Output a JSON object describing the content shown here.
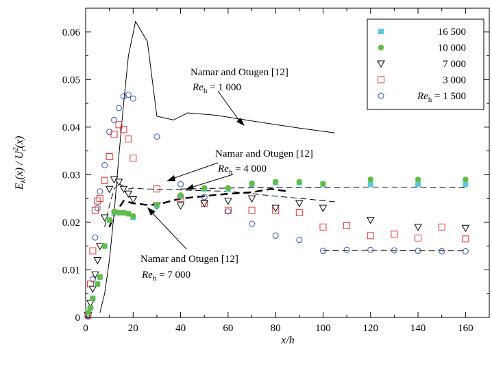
{
  "chart_data": {
    "type": "scatter",
    "title": "",
    "xlabel": "x/h",
    "ylabel": "E_k(x) / U_c^2(x)",
    "xlim": [
      0,
      170
    ],
    "ylim": [
      0,
      0.065
    ],
    "xticks": [
      0,
      20,
      40,
      60,
      80,
      100,
      120,
      140,
      160
    ],
    "yticks": [
      0,
      0.01,
      0.02,
      0.03,
      0.04,
      0.05,
      0.06
    ],
    "ytick_labels": [
      "0",
      "0.01",
      "0.02",
      "0.03",
      "0.04",
      "0.05",
      "0.06"
    ],
    "grid": false,
    "legend_position": "top-right",
    "series": [
      {
        "name": "16 500",
        "marker": "filled-square",
        "color": "#5bc8d8",
        "points": [
          [
            1,
            0.001
          ],
          [
            2,
            0.002
          ],
          [
            3,
            0.004
          ],
          [
            5,
            0.007
          ],
          [
            6,
            0.0085
          ],
          [
            8,
            0.015
          ],
          [
            10,
            0.0205
          ],
          [
            12,
            0.022
          ],
          [
            14,
            0.022
          ],
          [
            16,
            0.022
          ],
          [
            18,
            0.0218
          ],
          [
            20,
            0.021
          ],
          [
            30,
            0.0235
          ],
          [
            40,
            0.0255
          ],
          [
            50,
            0.027
          ],
          [
            60,
            0.027
          ],
          [
            70,
            0.028
          ],
          [
            80,
            0.0283
          ],
          [
            90,
            0.0283
          ],
          [
            100,
            0.028
          ],
          [
            120,
            0.028
          ],
          [
            140,
            0.028
          ],
          [
            160,
            0.028
          ]
        ]
      },
      {
        "name": "10 000",
        "marker": "filled-circle",
        "color": "#66bb44",
        "points": [
          [
            1,
            0.001
          ],
          [
            2,
            0.002
          ],
          [
            3,
            0.004
          ],
          [
            5,
            0.007
          ],
          [
            6,
            0.0085
          ],
          [
            8,
            0.015
          ],
          [
            10,
            0.0205
          ],
          [
            12,
            0.0222
          ],
          [
            14,
            0.022
          ],
          [
            16,
            0.022
          ],
          [
            18,
            0.0218
          ],
          [
            20,
            0.0213
          ],
          [
            30,
            0.0237
          ],
          [
            40,
            0.0257
          ],
          [
            50,
            0.0272
          ],
          [
            60,
            0.0272
          ],
          [
            70,
            0.0282
          ],
          [
            80,
            0.0285
          ],
          [
            90,
            0.0285
          ],
          [
            100,
            0.0281
          ],
          [
            120,
            0.029
          ],
          [
            140,
            0.029
          ],
          [
            160,
            0.029
          ]
        ]
      },
      {
        "name": "7 000",
        "marker": "open-triangle-down",
        "color": "#000000",
        "points": [
          [
            1,
            0.0005
          ],
          [
            2,
            0.003
          ],
          [
            3,
            0.006
          ],
          [
            4,
            0.009
          ],
          [
            5,
            0.012
          ],
          [
            6,
            0.015
          ],
          [
            8,
            0.021
          ],
          [
            10,
            0.027
          ],
          [
            12,
            0.029
          ],
          [
            14,
            0.0285
          ],
          [
            16,
            0.027
          ],
          [
            18,
            0.026
          ],
          [
            20,
            0.0248
          ],
          [
            30,
            0.0235
          ],
          [
            40,
            0.0235
          ],
          [
            50,
            0.024
          ],
          [
            60,
            0.0245
          ],
          [
            70,
            0.025
          ],
          [
            80,
            0.023
          ],
          [
            90,
            0.024
          ],
          [
            100,
            0.023
          ],
          [
            120,
            0.0205
          ],
          [
            140,
            0.019
          ],
          [
            160,
            0.0188
          ]
        ]
      },
      {
        "name": "3 000",
        "marker": "open-square",
        "color": "#e03030",
        "points": [
          [
            1,
            0.0005
          ],
          [
            2,
            0.007
          ],
          [
            3,
            0.014
          ],
          [
            4,
            0.0225
          ],
          [
            5,
            0.0245
          ],
          [
            6,
            0.025
          ],
          [
            8,
            0.0288
          ],
          [
            10,
            0.0338
          ],
          [
            12,
            0.0385
          ],
          [
            14,
            0.0405
          ],
          [
            16,
            0.0395
          ],
          [
            18,
            0.0375
          ],
          [
            20,
            0.0335
          ],
          [
            30,
            0.027
          ],
          [
            40,
            0.025
          ],
          [
            50,
            0.024
          ],
          [
            60,
            0.0225
          ],
          [
            70,
            0.0225
          ],
          [
            80,
            0.0225
          ],
          [
            90,
            0.022
          ],
          [
            100,
            0.019
          ],
          [
            110,
            0.0193
          ],
          [
            120,
            0.0172
          ],
          [
            130,
            0.0175
          ],
          [
            140,
            0.0167
          ],
          [
            150,
            0.019
          ],
          [
            160,
            0.0165
          ]
        ]
      },
      {
        "name": "Re_h = 1 500",
        "marker": "open-circle",
        "color": "#3050b0",
        "points": [
          [
            1,
            0.0002
          ],
          [
            2,
            0.002
          ],
          [
            3,
            0.008
          ],
          [
            4,
            0.0168
          ],
          [
            5,
            0.023
          ],
          [
            6,
            0.0265
          ],
          [
            8,
            0.032
          ],
          [
            10,
            0.039
          ],
          [
            12,
            0.0415
          ],
          [
            14,
            0.044
          ],
          [
            16,
            0.0465
          ],
          [
            18,
            0.0468
          ],
          [
            20,
            0.046
          ],
          [
            30,
            0.038
          ],
          [
            40,
            0.028
          ],
          [
            50,
            0.0253
          ],
          [
            60,
            0.0223
          ],
          [
            70,
            0.0197
          ],
          [
            80,
            0.0172
          ],
          [
            90,
            0.0163
          ],
          [
            100,
            0.014
          ],
          [
            110,
            0.0142
          ],
          [
            120,
            0.0142
          ],
          [
            130,
            0.0141
          ],
          [
            140,
            0.014
          ],
          [
            150,
            0.0139
          ],
          [
            160,
            0.0139
          ]
        ]
      }
    ],
    "reference_curves": [
      {
        "style": "solid-thin",
        "points": [
          [
            6,
            0.001
          ],
          [
            8,
            0.005
          ],
          [
            10,
            0.012
          ],
          [
            12,
            0.022
          ],
          [
            14,
            0.034
          ],
          [
            16,
            0.045
          ],
          [
            18,
            0.055
          ],
          [
            21,
            0.0622
          ],
          [
            26,
            0.058
          ],
          [
            30,
            0.0423
          ],
          [
            37,
            0.0415
          ],
          [
            43,
            0.043
          ],
          [
            55,
            0.0425
          ],
          [
            70,
            0.0413
          ],
          [
            90,
            0.0398
          ],
          [
            105,
            0.0388
          ]
        ]
      },
      {
        "style": "dashed-thin",
        "points": [
          [
            8,
            0.019
          ],
          [
            10,
            0.0235
          ],
          [
            12,
            0.027
          ],
          [
            14,
            0.0282
          ],
          [
            16,
            0.0275
          ],
          [
            18,
            0.027
          ],
          [
            20,
            0.0272
          ],
          [
            25,
            0.027
          ],
          [
            40,
            0.0268
          ],
          [
            60,
            0.0265
          ],
          [
            80,
            0.0255
          ],
          [
            95,
            0.0248
          ],
          [
            105,
            0.0243
          ]
        ]
      },
      {
        "style": "dashed-thick",
        "points": [
          [
            10,
            0.019
          ],
          [
            12,
            0.0215
          ],
          [
            16,
            0.0245
          ],
          [
            20,
            0.024
          ],
          [
            25,
            0.0237
          ],
          [
            30,
            0.0237
          ],
          [
            40,
            0.025
          ],
          [
            50,
            0.0255
          ],
          [
            60,
            0.026
          ],
          [
            70,
            0.0263
          ],
          [
            78,
            0.027
          ],
          [
            85,
            0.0265
          ]
        ]
      },
      {
        "style": "dashed-thin",
        "points": [
          [
            40,
            0.027
          ],
          [
            60,
            0.0272
          ],
          [
            80,
            0.0273
          ],
          [
            100,
            0.0273
          ],
          [
            120,
            0.0274
          ],
          [
            160,
            0.0273
          ]
        ]
      },
      {
        "style": "dashed-thin",
        "points": [
          [
            100,
            0.014
          ],
          [
            120,
            0.0141
          ],
          [
            140,
            0.014
          ],
          [
            160,
            0.014
          ]
        ]
      }
    ],
    "annotations": [
      {
        "line1": "Namar and Otugen [12]",
        "line2_prefix": "Re",
        "line2_sub": "h",
        "line2_value": " = 1 000"
      },
      {
        "line1": "Namar and Otugen [12]",
        "line2_prefix": "Re",
        "line2_sub": "h",
        "line2_value": " = 4 000"
      },
      {
        "line1": "Namar and Otugen [12]",
        "line2_prefix": "Re",
        "line2_sub": "h",
        "line2_value": " = 7 000"
      }
    ]
  }
}
